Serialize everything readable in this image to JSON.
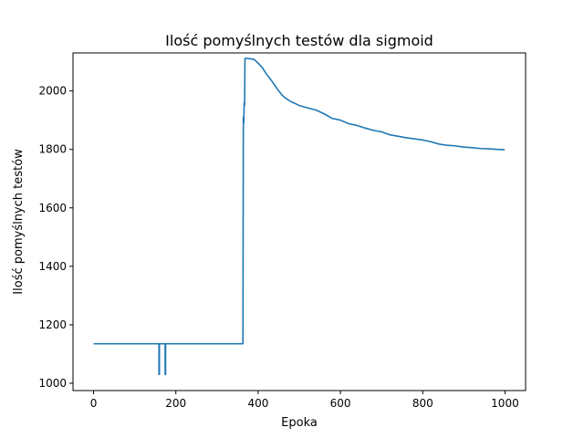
{
  "chart_data": {
    "type": "line",
    "title": "Ilość pomyślnych testów dla sigmoid",
    "xlabel": "Epoka",
    "ylabel": "Ilość pomyślnych testów",
    "xlim": [
      -50,
      1050
    ],
    "ylim": [
      975,
      2130
    ],
    "xticks": [
      0,
      200,
      400,
      600,
      800,
      1000
    ],
    "yticks": [
      1000,
      1200,
      1400,
      1600,
      1800,
      2000
    ],
    "grid": false,
    "series_color": "#1f77b4",
    "series": [
      {
        "points": [
          [
            0,
            1135
          ],
          [
            159,
            1135
          ],
          [
            159,
            1030
          ],
          [
            160,
            1030
          ],
          [
            160,
            1135
          ],
          [
            174,
            1135
          ],
          [
            174,
            1030
          ],
          [
            175,
            1030
          ],
          [
            175,
            1135
          ],
          [
            363,
            1135
          ],
          [
            364,
            1910
          ],
          [
            365,
            1890
          ],
          [
            366,
            1960
          ],
          [
            367,
            1950
          ],
          [
            368,
            2110
          ],
          [
            370,
            2112
          ],
          [
            380,
            2110
          ],
          [
            390,
            2108
          ],
          [
            400,
            2095
          ],
          [
            410,
            2080
          ],
          [
            420,
            2058
          ],
          [
            430,
            2040
          ],
          [
            440,
            2020
          ],
          [
            450,
            2000
          ],
          [
            460,
            1983
          ],
          [
            470,
            1972
          ],
          [
            480,
            1963
          ],
          [
            490,
            1957
          ],
          [
            500,
            1950
          ],
          [
            520,
            1942
          ],
          [
            540,
            1935
          ],
          [
            560,
            1922
          ],
          [
            580,
            1906
          ],
          [
            600,
            1900
          ],
          [
            620,
            1888
          ],
          [
            640,
            1882
          ],
          [
            660,
            1873
          ],
          [
            680,
            1865
          ],
          [
            700,
            1860
          ],
          [
            720,
            1850
          ],
          [
            740,
            1845
          ],
          [
            760,
            1840
          ],
          [
            780,
            1836
          ],
          [
            800,
            1832
          ],
          [
            820,
            1826
          ],
          [
            840,
            1818
          ],
          [
            860,
            1814
          ],
          [
            880,
            1812
          ],
          [
            900,
            1808
          ],
          [
            920,
            1806
          ],
          [
            940,
            1803
          ],
          [
            960,
            1802
          ],
          [
            980,
            1800
          ],
          [
            999,
            1799
          ]
        ]
      }
    ]
  }
}
